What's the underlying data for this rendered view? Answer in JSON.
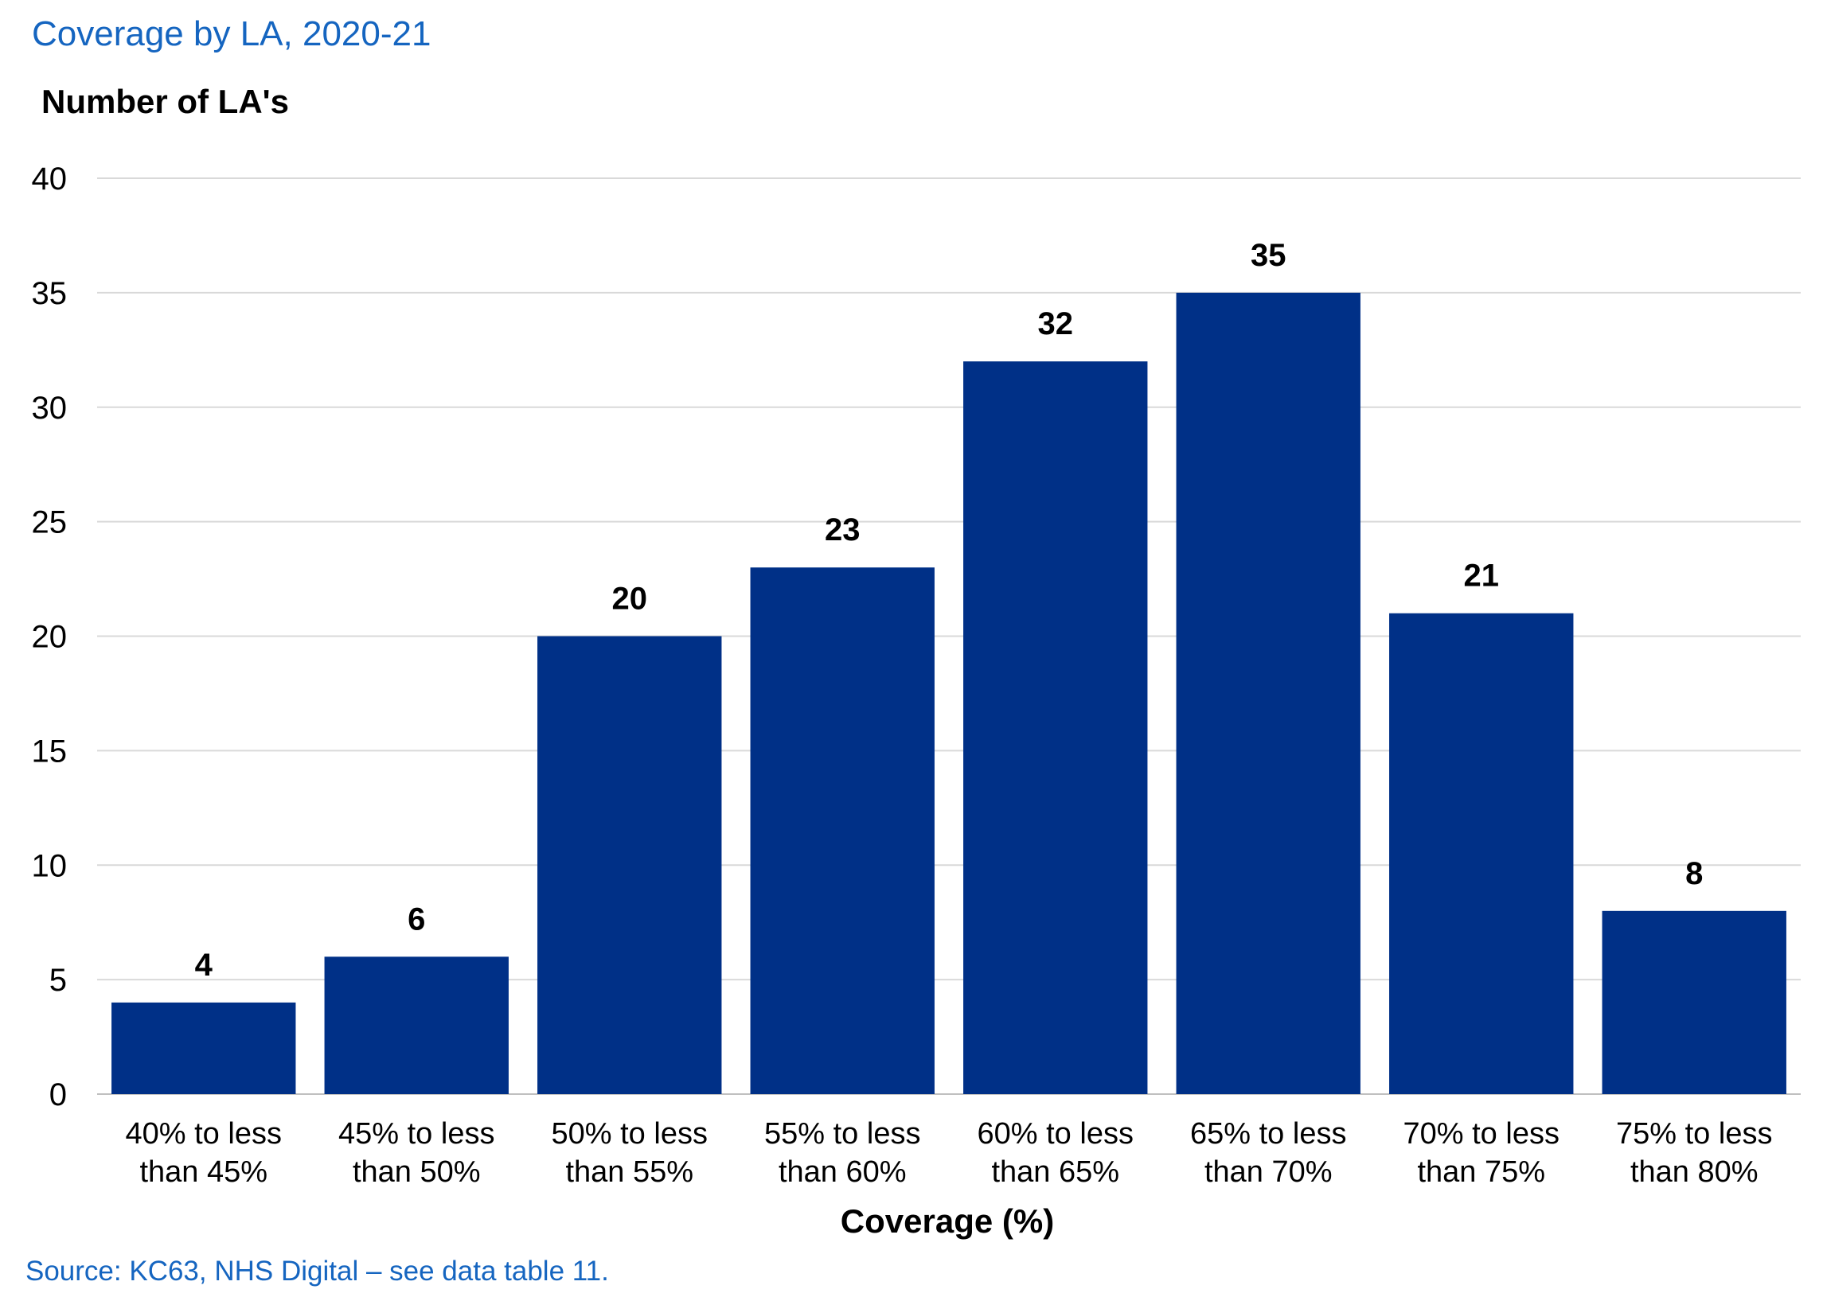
{
  "chart_title": "Coverage by LA, 2020-21",
  "source": "Source: KC63, NHS Digital – see data table 11.",
  "colors": {
    "bar": "#003087",
    "grid": "#d9d9d9",
    "title": "#1565c0"
  },
  "chart_data": {
    "type": "bar",
    "title": "Coverage by LA, 2020-21",
    "ylabel": "Number of LA's",
    "xlabel": "Coverage (%)",
    "ylim": [
      0,
      40
    ],
    "yticks": [
      0,
      5,
      10,
      15,
      20,
      25,
      30,
      35,
      40
    ],
    "grid": true,
    "legend": "none",
    "categories": [
      [
        "40% to less",
        "than 45%"
      ],
      [
        "45% to less",
        "than 50%"
      ],
      [
        "50% to less",
        "than 55%"
      ],
      [
        "55% to less",
        "than 60%"
      ],
      [
        "60% to less",
        "than 65%"
      ],
      [
        "65% to less",
        "than 70%"
      ],
      [
        "70% to less",
        "than 75%"
      ],
      [
        "75% to less",
        "than 80%"
      ]
    ],
    "values": [
      4,
      6,
      20,
      23,
      32,
      35,
      21,
      8
    ]
  }
}
